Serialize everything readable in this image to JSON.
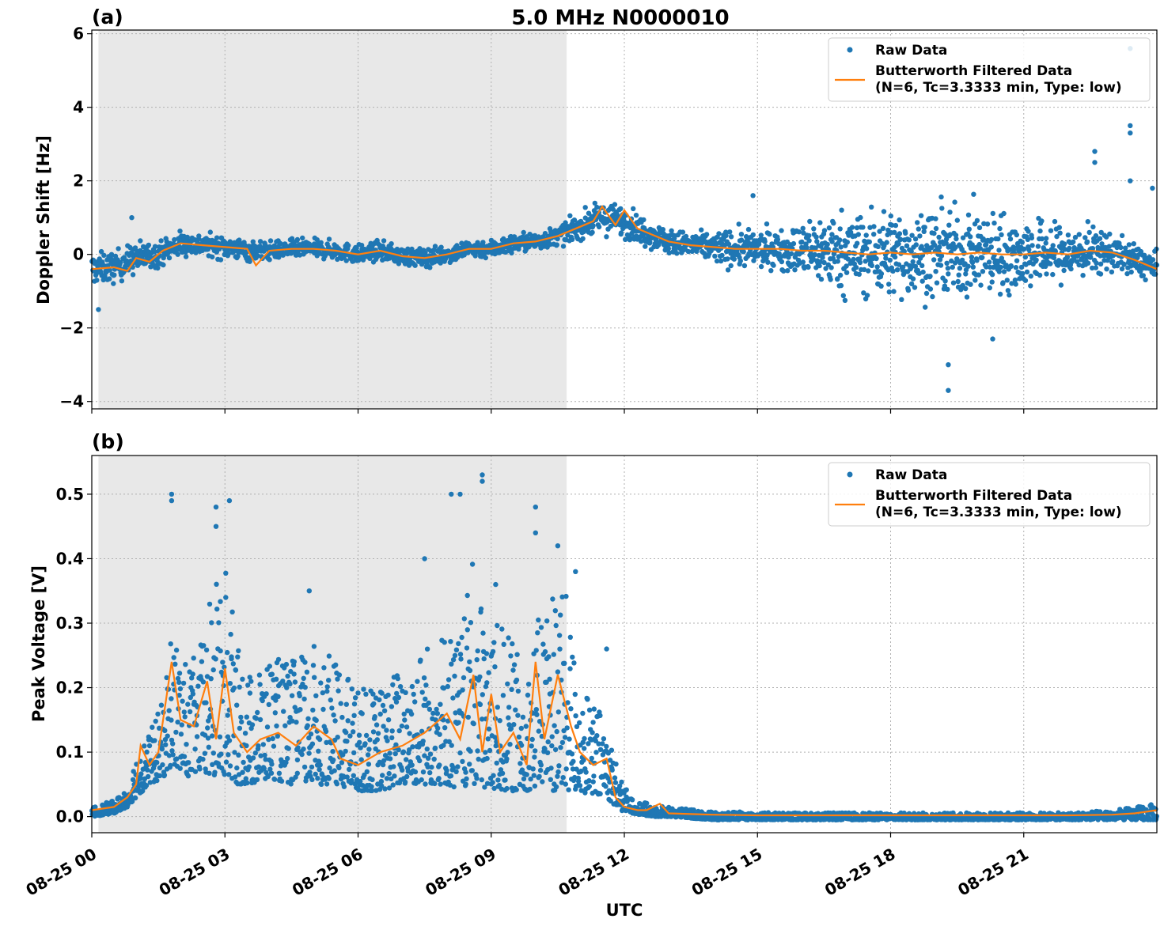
{
  "figure": {
    "title": "5.0 MHz N0000010",
    "xlabel": "UTC",
    "x_ticks": [
      "08-25 00",
      "08-25 03",
      "08-25 06",
      "08-25 09",
      "08-25 12",
      "08-25 15",
      "08-25 18",
      "08-25 21"
    ],
    "x_tick_hours": [
      0,
      3,
      6,
      9,
      12,
      15,
      18,
      21
    ],
    "xlim_hours": [
      0,
      24
    ],
    "shaded_region_hours": [
      0.15,
      10.7
    ],
    "shade_color": "#e8e8e8",
    "raw_color": "#1f77b4",
    "filtered_color": "#ff7f0e",
    "grid": true,
    "legend": {
      "raw_label": "Raw Data",
      "filtered_label_line1": "Butterworth Filtered Data",
      "filtered_label_line2": "(N=6, Tc=3.3333 min, Type: low)",
      "placement": "top-right"
    }
  },
  "chart_data": [
    {
      "type": "scatter",
      "panel_label": "(a)",
      "ylabel": "Doppler Shift [Hz]",
      "ylim": [
        -4.2,
        6.1
      ],
      "y_ticks": [
        -4,
        -2,
        0,
        2,
        4,
        6
      ],
      "y_tick_labels": [
        "−4",
        "−2",
        "0",
        "2",
        "4",
        "6"
      ],
      "series": [
        {
          "name": "Butterworth Filtered Data",
          "x_hours": [
            0,
            0.5,
            0.8,
            1.0,
            1.3,
            1.6,
            2.0,
            2.5,
            3.0,
            3.5,
            3.7,
            4.0,
            4.5,
            5.0,
            5.5,
            6.0,
            6.5,
            7.0,
            7.5,
            8.0,
            8.5,
            9.0,
            9.5,
            10.0,
            10.5,
            11.0,
            11.3,
            11.5,
            11.8,
            12.0,
            12.3,
            12.6,
            13.0,
            13.5,
            14.0,
            14.5,
            15.0,
            15.5,
            16.0,
            16.5,
            17.0,
            17.5,
            18.0,
            18.5,
            19.0,
            19.5,
            20.0,
            20.5,
            21.0,
            21.5,
            22.0,
            22.5,
            23.0,
            23.5,
            24.0
          ],
          "y": [
            -0.4,
            -0.35,
            -0.45,
            -0.1,
            -0.2,
            0.1,
            0.3,
            0.25,
            0.2,
            0.15,
            -0.3,
            0.1,
            0.15,
            0.15,
            0.1,
            0.0,
            0.1,
            -0.05,
            -0.1,
            0.0,
            0.15,
            0.15,
            0.3,
            0.35,
            0.5,
            0.75,
            0.9,
            1.3,
            0.8,
            1.2,
            0.7,
            0.55,
            0.35,
            0.25,
            0.2,
            0.15,
            0.15,
            0.15,
            0.1,
            0.1,
            0.05,
            0.0,
            0.05,
            0.0,
            0.05,
            0.0,
            0.05,
            0.0,
            0.0,
            0.05,
            0.0,
            0.1,
            0.05,
            -0.15,
            -0.4
          ]
        },
        {
          "name": "Raw Data",
          "x_hours": [
            0,
            0.5,
            1.0,
            1.5,
            2.0,
            2.5,
            3.0,
            3.5,
            4.0,
            4.5,
            5.0,
            5.5,
            6.0,
            6.5,
            7.0,
            7.5,
            8.0,
            8.5,
            9.0,
            9.5,
            10.0,
            10.5,
            11.0,
            11.5,
            12.0,
            12.5,
            13.0,
            13.5,
            14.0,
            14.5,
            15.0,
            15.5,
            16.0,
            16.5,
            17.0,
            17.5,
            18.0,
            18.5,
            19.0,
            19.5,
            20.0,
            20.5,
            21.0,
            21.5,
            22.0,
            22.5,
            23.0,
            23.5,
            24.0
          ],
          "y_center": [
            -0.4,
            -0.35,
            -0.1,
            0.0,
            0.3,
            0.25,
            0.2,
            0.1,
            0.1,
            0.15,
            0.15,
            0.1,
            0.0,
            0.1,
            -0.05,
            -0.1,
            0.0,
            0.15,
            0.15,
            0.3,
            0.35,
            0.5,
            0.75,
            1.0,
            0.9,
            0.6,
            0.35,
            0.25,
            0.2,
            0.15,
            0.15,
            0.15,
            0.1,
            0.1,
            0.05,
            0.0,
            0.05,
            0.0,
            0.05,
            0.0,
            0.05,
            0.0,
            0.0,
            0.05,
            0.0,
            0.1,
            0.05,
            -0.15,
            -0.4
          ],
          "y_spread": [
            0.5,
            0.5,
            0.5,
            0.4,
            0.4,
            0.35,
            0.35,
            0.35,
            0.3,
            0.3,
            0.3,
            0.3,
            0.3,
            0.3,
            0.3,
            0.3,
            0.3,
            0.3,
            0.3,
            0.3,
            0.3,
            0.3,
            0.4,
            0.5,
            0.5,
            0.45,
            0.4,
            0.4,
            0.5,
            0.6,
            0.6,
            0.6,
            0.9,
            1.2,
            1.3,
            1.4,
            1.4,
            1.4,
            1.4,
            1.4,
            1.4,
            1.3,
            1.2,
            1.0,
            0.9,
            0.8,
            0.6,
            0.5,
            0.5
          ],
          "outliers_x": [
            0.15,
            0.9,
            14.9,
            19.3,
            19.3,
            20.3,
            22.6,
            22.6,
            23.4,
            23.4,
            23.4,
            23.4,
            23.9
          ],
          "outliers_y": [
            -1.5,
            1.0,
            1.6,
            -3.7,
            -3.0,
            -2.3,
            2.8,
            2.5,
            3.5,
            3.3,
            2.0,
            5.6,
            1.8
          ]
        }
      ]
    },
    {
      "type": "scatter",
      "panel_label": "(b)",
      "ylabel": "Peak Voltage [V]",
      "ylim": [
        -0.025,
        0.56
      ],
      "y_ticks": [
        0.0,
        0.1,
        0.2,
        0.3,
        0.4,
        0.5
      ],
      "y_tick_labels": [
        "0.0",
        "0.1",
        "0.2",
        "0.3",
        "0.4",
        "0.5"
      ],
      "series": [
        {
          "name": "Butterworth Filtered Data",
          "x_hours": [
            0,
            0.5,
            0.8,
            1.0,
            1.1,
            1.3,
            1.5,
            1.8,
            2.0,
            2.3,
            2.6,
            2.8,
            3.0,
            3.2,
            3.5,
            3.8,
            4.2,
            4.6,
            5.0,
            5.4,
            5.6,
            6.0,
            6.5,
            7.0,
            7.5,
            8.0,
            8.3,
            8.6,
            8.8,
            9.0,
            9.2,
            9.5,
            9.8,
            10.0,
            10.2,
            10.5,
            10.8,
            11.0,
            11.3,
            11.6,
            11.8,
            12.0,
            12.3,
            12.5,
            12.8,
            13.0,
            13.5,
            14.0,
            15.0,
            18.0,
            21.0,
            22.0,
            23.0,
            23.5,
            24.0
          ],
          "y": [
            0.01,
            0.015,
            0.03,
            0.05,
            0.11,
            0.08,
            0.1,
            0.24,
            0.15,
            0.14,
            0.21,
            0.12,
            0.23,
            0.13,
            0.1,
            0.12,
            0.13,
            0.11,
            0.14,
            0.12,
            0.09,
            0.08,
            0.1,
            0.11,
            0.13,
            0.16,
            0.12,
            0.22,
            0.1,
            0.19,
            0.1,
            0.13,
            0.08,
            0.24,
            0.12,
            0.22,
            0.14,
            0.1,
            0.08,
            0.09,
            0.03,
            0.015,
            0.01,
            0.01,
            0.02,
            0.005,
            0.004,
            0.003,
            0.002,
            0.002,
            0.002,
            0.002,
            0.003,
            0.005,
            0.01
          ]
        },
        {
          "name": "Raw Data",
          "x_hours": [
            0,
            0.5,
            0.8,
            1.0,
            1.3,
            1.6,
            1.8,
            2.1,
            2.4,
            2.7,
            3.0,
            3.3,
            3.6,
            4.0,
            4.5,
            5.0,
            5.5,
            6.0,
            6.5,
            7.0,
            7.5,
            8.0,
            8.3,
            8.6,
            8.9,
            9.2,
            9.5,
            9.8,
            10.1,
            10.4,
            10.7,
            11.0,
            11.3,
            11.6,
            11.9,
            12.2,
            12.6,
            13.0,
            14.0,
            16.0,
            18.0,
            20.0,
            22.0,
            23.0,
            23.5,
            24.0
          ],
          "y_low": [
            0.0,
            0.005,
            0.015,
            0.03,
            0.05,
            0.06,
            0.08,
            0.06,
            0.07,
            0.06,
            0.06,
            0.05,
            0.05,
            0.06,
            0.05,
            0.05,
            0.05,
            0.04,
            0.04,
            0.05,
            0.05,
            0.05,
            0.04,
            0.05,
            0.04,
            0.04,
            0.04,
            0.04,
            0.05,
            0.04,
            0.04,
            0.04,
            0.03,
            0.03,
            0.01,
            0.005,
            0.0,
            0.0,
            -0.005,
            -0.005,
            -0.005,
            -0.005,
            -0.005,
            -0.005,
            -0.005,
            -0.005
          ],
          "y_high": [
            0.015,
            0.025,
            0.045,
            0.1,
            0.13,
            0.18,
            0.3,
            0.24,
            0.25,
            0.35,
            0.4,
            0.26,
            0.22,
            0.25,
            0.24,
            0.27,
            0.24,
            0.2,
            0.2,
            0.24,
            0.27,
            0.3,
            0.28,
            0.4,
            0.3,
            0.3,
            0.27,
            0.22,
            0.32,
            0.38,
            0.34,
            0.2,
            0.18,
            0.15,
            0.06,
            0.025,
            0.02,
            0.015,
            0.008,
            0.006,
            0.006,
            0.006,
            0.006,
            0.01,
            0.015,
            0.02
          ],
          "outliers_x": [
            1.8,
            1.8,
            2.8,
            2.8,
            3.1,
            7.5,
            8.1,
            8.3,
            8.8,
            8.8,
            9.1,
            10.0,
            10.0,
            10.5,
            10.9,
            11.6,
            4.9
          ],
          "outliers_y": [
            0.5,
            0.49,
            0.48,
            0.45,
            0.49,
            0.4,
            0.5,
            0.5,
            0.53,
            0.52,
            0.36,
            0.48,
            0.44,
            0.42,
            0.38,
            0.26,
            0.35
          ]
        }
      ]
    }
  ]
}
